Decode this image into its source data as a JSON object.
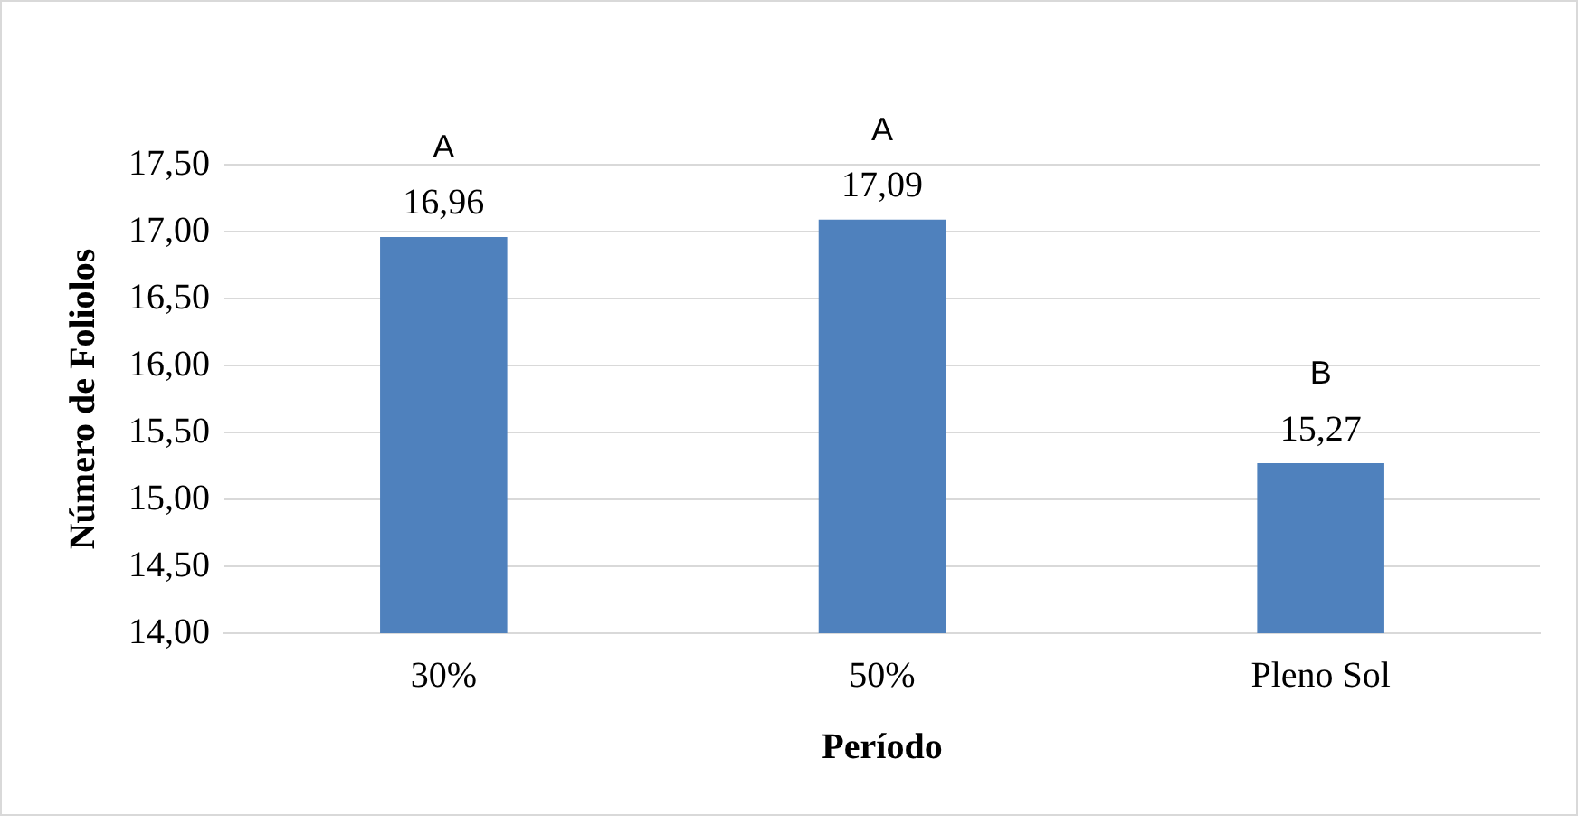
{
  "chart_data": {
    "type": "bar",
    "xlabel": "Período",
    "ylabel": "Número de Foliolos",
    "categories": [
      "30%",
      "50%",
      "Pleno Sol"
    ],
    "values": [
      16.96,
      17.09,
      15.27
    ],
    "value_labels": [
      "16,96",
      "17,09",
      "15,27"
    ],
    "color": "#4f81bd",
    "ylim": [
      14,
      17.5
    ],
    "yticks": [
      {
        "value": 14,
        "label": "14,00"
      },
      {
        "value": 14.5,
        "label": "14,50"
      },
      {
        "value": 15,
        "label": "15,00"
      },
      {
        "value": 15.5,
        "label": "15,50"
      },
      {
        "value": 16,
        "label": "16,00"
      },
      {
        "value": 16.5,
        "label": "16,50"
      },
      {
        "value": 17,
        "label": "17,00"
      },
      {
        "value": 17.5,
        "label": "17,50"
      }
    ],
    "grid": "y",
    "legend": false,
    "annotations": [
      {
        "text": "A",
        "x": "30%",
        "y": 16.96
      },
      {
        "text": "A",
        "x": "50%",
        "y": 17.09
      },
      {
        "text": "B",
        "x": "Pleno Sol",
        "y": 15.27
      }
    ]
  }
}
